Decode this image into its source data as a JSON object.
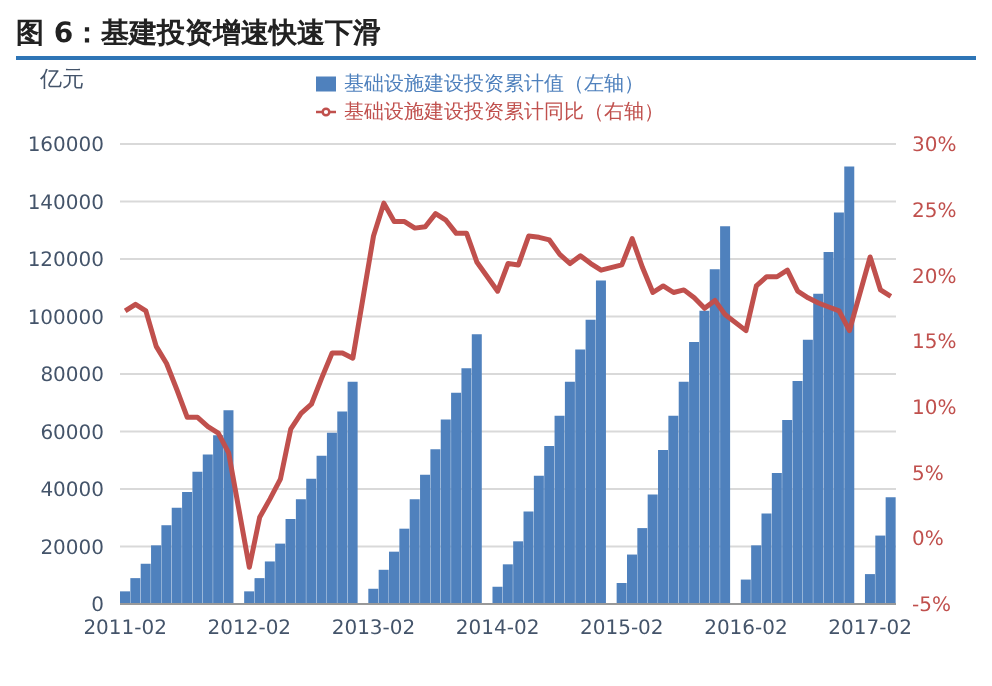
{
  "chart_data": {
    "type": "bar",
    "title": "图 6：基建投资增速快速下滑",
    "ylabel": "亿元",
    "categories": [
      "2011-02",
      null,
      null,
      null,
      null,
      null,
      null,
      null,
      null,
      null,
      null,
      null,
      "2012-02",
      null,
      null,
      null,
      null,
      null,
      null,
      null,
      null,
      null,
      null,
      null,
      "2013-02",
      null,
      null,
      null,
      null,
      null,
      null,
      null,
      null,
      null,
      null,
      null,
      "2014-02",
      null,
      null,
      null,
      null,
      null,
      null,
      null,
      null,
      null,
      null,
      null,
      "2015-02",
      null,
      null,
      null,
      null,
      null,
      null,
      null,
      null,
      null,
      null,
      null,
      "2016-02",
      null,
      null,
      null,
      null,
      null,
      null,
      null,
      null,
      null,
      null,
      null,
      "2017-02",
      null,
      null
    ],
    "series": [
      {
        "name": "基础设施建设投资累计值（左轴）",
        "color": "#4f81bd",
        "values": [
          4400,
          9000,
          14000,
          20400,
          27400,
          33500,
          39000,
          46000,
          52000,
          58700,
          67400,
          null,
          4400,
          9000,
          14800,
          21000,
          29600,
          36400,
          43600,
          51600,
          59600,
          67000,
          77300,
          null,
          5300,
          11900,
          18200,
          26200,
          36400,
          45000,
          53800,
          64200,
          73500,
          82000,
          93800,
          null,
          6000,
          13800,
          21800,
          32200,
          44600,
          55000,
          65500,
          77300,
          88500,
          98900,
          112500,
          null,
          7300,
          17200,
          26400,
          38100,
          53600,
          65500,
          77300,
          91100,
          102000,
          116400,
          131400,
          null,
          8500,
          20400,
          31500,
          45600,
          64000,
          77600,
          91900,
          107900,
          122400,
          136200,
          152200,
          null,
          10400,
          23800,
          37100
        ]
      },
      {
        "name": "基础设施建设投资累计同比（右轴）",
        "type": "line",
        "axis": "y2",
        "color": "#c0504d",
        "values": [
          17.3,
          17.8,
          17.3,
          14.6,
          13.3,
          11.3,
          9.2,
          9.2,
          8.5,
          8.0,
          6.5,
          null,
          -2.2,
          1.6,
          3.0,
          4.5,
          8.3,
          9.5,
          10.2,
          12.2,
          14.1,
          14.1,
          13.7,
          null,
          23.0,
          25.5,
          24.1,
          24.1,
          23.6,
          23.7,
          24.7,
          24.2,
          23.2,
          23.2,
          21.0,
          null,
          18.8,
          20.9,
          20.8,
          23.0,
          22.9,
          22.7,
          21.6,
          20.9,
          21.5,
          20.9,
          20.4,
          null,
          20.8,
          22.8,
          20.6,
          18.7,
          19.2,
          18.7,
          18.9,
          18.3,
          17.5,
          18.1,
          17.0,
          null,
          15.8,
          19.2,
          19.9,
          19.9,
          20.4,
          18.8,
          18.3,
          17.9,
          17.6,
          17.3,
          15.8,
          null,
          21.4,
          18.9,
          18.4
        ]
      }
    ],
    "ylim": [
      0,
      160000
    ],
    "yticks": [
      0,
      20000,
      40000,
      60000,
      80000,
      100000,
      120000,
      140000,
      160000
    ],
    "y2lim": [
      -5,
      30
    ],
    "y2ticks": [
      {
        "value": -5,
        "label": "-5%"
      },
      {
        "value": 0,
        "label": "0%"
      },
      {
        "value": 5,
        "label": "5%"
      },
      {
        "value": 10,
        "label": "10%"
      },
      {
        "value": 15,
        "label": "15%"
      },
      {
        "value": 20,
        "label": "20%"
      },
      {
        "value": 25,
        "label": "25%"
      },
      {
        "value": 30,
        "label": "30%"
      }
    ],
    "grid": "y",
    "legend": "top",
    "marker": "none"
  }
}
